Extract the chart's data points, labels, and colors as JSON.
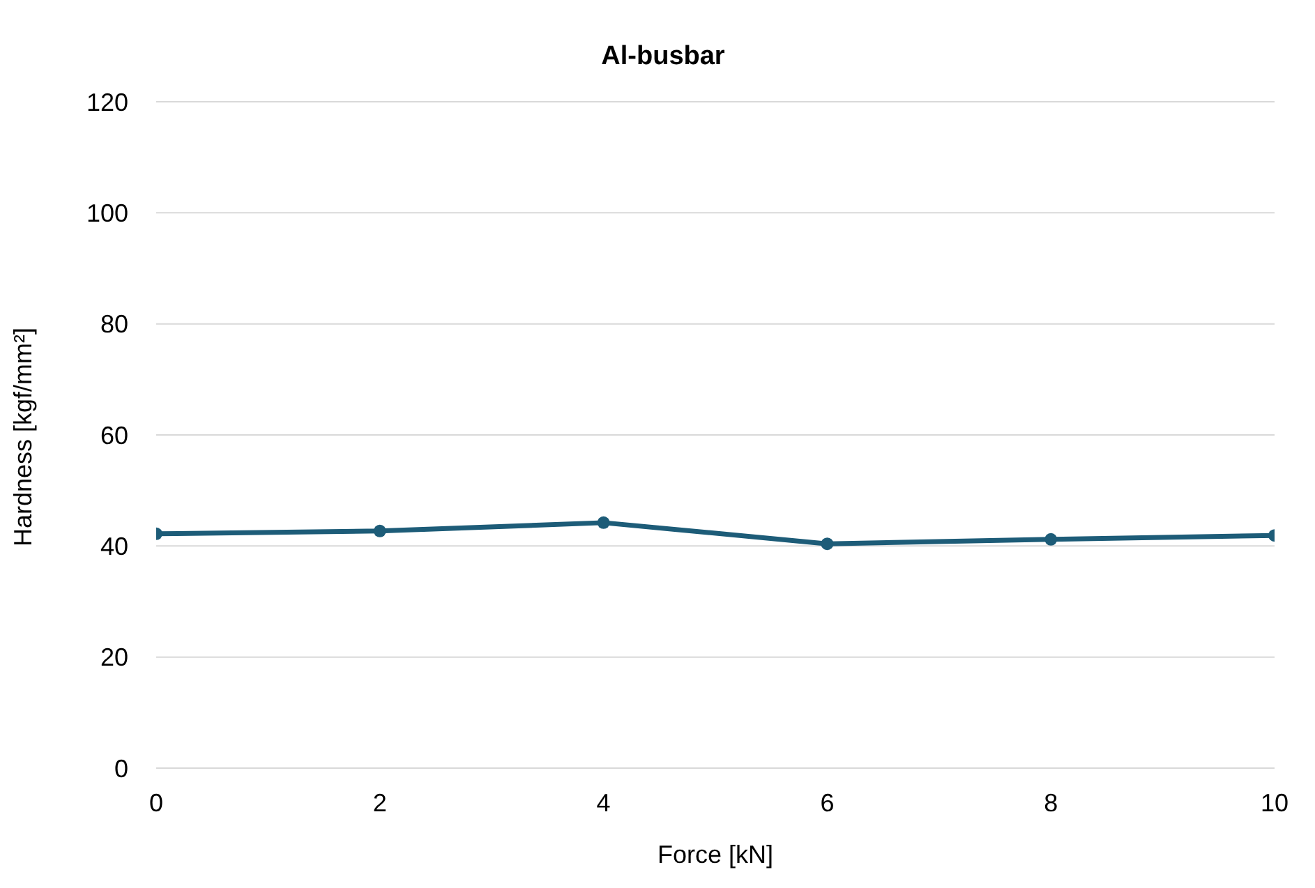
{
  "chart_data": {
    "type": "line",
    "title": "Al-busbar",
    "xlabel": "Force [kN]",
    "ylabel": "Hardness [kgf/mm²]",
    "x": [
      0,
      2,
      4,
      6,
      8,
      10
    ],
    "series": [
      {
        "color": "#1d5c78",
        "values": [
          42.2,
          42.7,
          44.2,
          40.4,
          41.2,
          41.9
        ]
      }
    ],
    "xlim": [
      0,
      10
    ],
    "xticks": [
      0,
      2,
      4,
      6,
      8,
      10
    ],
    "ylim": [
      0,
      120
    ],
    "yticks": [
      0,
      20,
      40,
      60,
      80,
      100,
      120
    ],
    "grid": "y",
    "marker": "circle",
    "line_style": "solid"
  }
}
